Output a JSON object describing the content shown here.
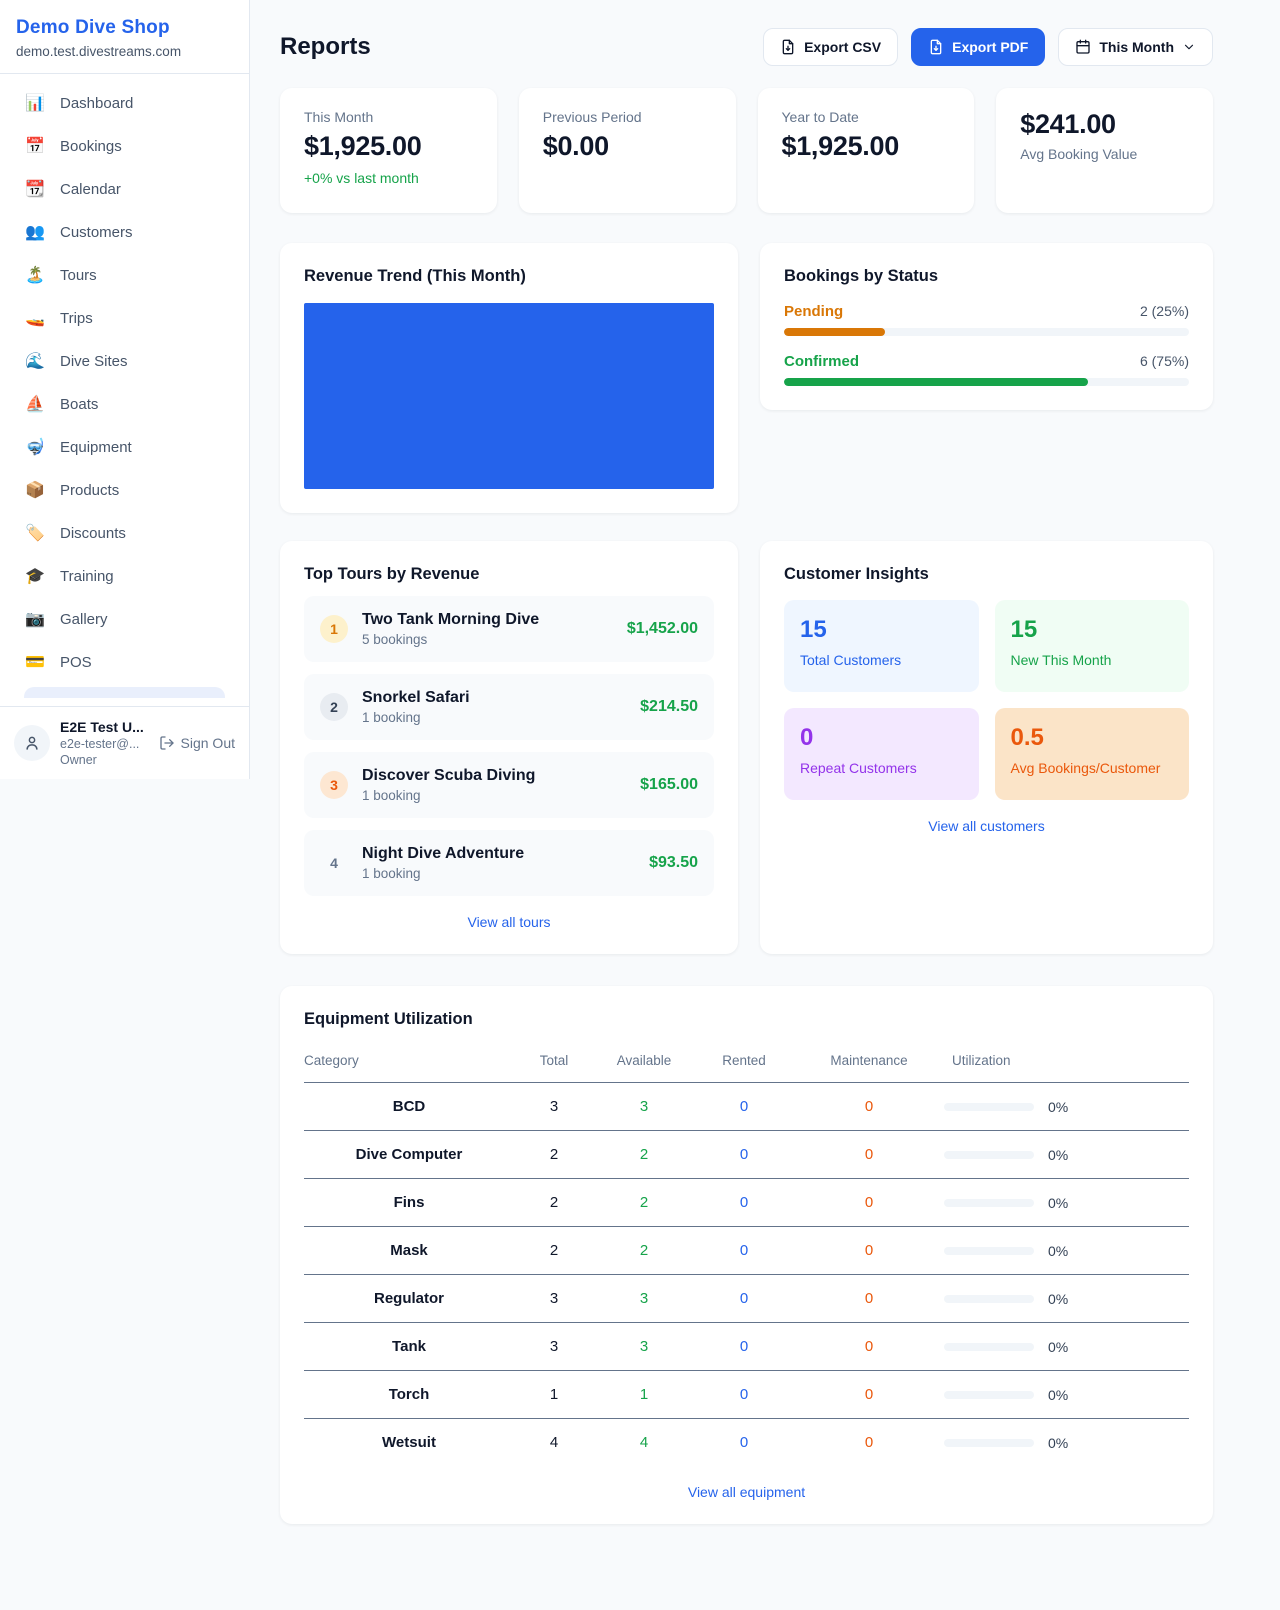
{
  "brand": {
    "name": "Demo Dive Shop",
    "domain": "demo.test.divestreams.com"
  },
  "sidebar": {
    "items": [
      {
        "icon": "📊",
        "label": "Dashboard"
      },
      {
        "icon": "📅",
        "label": "Bookings"
      },
      {
        "icon": "📆",
        "label": "Calendar"
      },
      {
        "icon": "👥",
        "label": "Customers"
      },
      {
        "icon": "🏝️",
        "label": "Tours"
      },
      {
        "icon": "🚤",
        "label": "Trips"
      },
      {
        "icon": "🌊",
        "label": "Dive Sites"
      },
      {
        "icon": "⛵",
        "label": "Boats"
      },
      {
        "icon": "🤿",
        "label": "Equipment"
      },
      {
        "icon": "📦",
        "label": "Products"
      },
      {
        "icon": "🏷️",
        "label": "Discounts"
      },
      {
        "icon": "🎓",
        "label": "Training"
      },
      {
        "icon": "📷",
        "label": "Gallery"
      },
      {
        "icon": "💳",
        "label": "POS"
      }
    ]
  },
  "user": {
    "name": "E2E Test U...",
    "email": "e2e-tester@...",
    "role": "Owner",
    "sign_out": "Sign Out"
  },
  "header": {
    "title": "Reports",
    "export_csv": "Export CSV",
    "export_pdf": "Export PDF",
    "period": "This Month"
  },
  "stats": [
    {
      "label": "This Month",
      "value": "$1,925.00",
      "delta": "+0% vs last month"
    },
    {
      "label": "Previous Period",
      "value": "$0.00"
    },
    {
      "label": "Year to Date",
      "value": "$1,925.00"
    },
    {
      "value": "$241.00",
      "label": "Avg Booking Value"
    }
  ],
  "revenue_trend": {
    "title": "Revenue Trend (This Month)"
  },
  "bookings_by_status": {
    "title": "Bookings by Status",
    "rows": [
      {
        "label": "Pending",
        "value": "2 (25%)",
        "percent": 25
      },
      {
        "label": "Confirmed",
        "value": "6 (75%)",
        "percent": 75
      }
    ]
  },
  "top_tours": {
    "title": "Top Tours by Revenue",
    "rows": [
      {
        "rank": "1",
        "name": "Two Tank Morning Dive",
        "bookings": "5 bookings",
        "revenue": "$1,452.00"
      },
      {
        "rank": "2",
        "name": "Snorkel Safari",
        "bookings": "1 booking",
        "revenue": "$214.50"
      },
      {
        "rank": "3",
        "name": "Discover Scuba Diving",
        "bookings": "1 booking",
        "revenue": "$165.00"
      },
      {
        "rank": "4",
        "name": "Night Dive Adventure",
        "bookings": "1 booking",
        "revenue": "$93.50"
      }
    ],
    "view_all": "View all tours"
  },
  "customer_insights": {
    "title": "Customer Insights",
    "tiles": [
      {
        "value": "15",
        "label": "Total Customers"
      },
      {
        "value": "15",
        "label": "New This Month"
      },
      {
        "value": "0",
        "label": "Repeat Customers"
      },
      {
        "value": "0.5",
        "label": "Avg Bookings/Customer"
      }
    ],
    "view_all": "View all customers"
  },
  "equipment": {
    "title": "Equipment Utilization",
    "columns": [
      "Category",
      "Total",
      "Available",
      "Rented",
      "Maintenance",
      "Utilization"
    ],
    "rows": [
      {
        "category": "BCD",
        "total": "3",
        "available": "3",
        "rented": "0",
        "maintenance": "0",
        "utilization": "0%",
        "percent": 0
      },
      {
        "category": "Dive Computer",
        "total": "2",
        "available": "2",
        "rented": "0",
        "maintenance": "0",
        "utilization": "0%",
        "percent": 0
      },
      {
        "category": "Fins",
        "total": "2",
        "available": "2",
        "rented": "0",
        "maintenance": "0",
        "utilization": "0%",
        "percent": 0
      },
      {
        "category": "Mask",
        "total": "2",
        "available": "2",
        "rented": "0",
        "maintenance": "0",
        "utilization": "0%",
        "percent": 0
      },
      {
        "category": "Regulator",
        "total": "3",
        "available": "3",
        "rented": "0",
        "maintenance": "0",
        "utilization": "0%",
        "percent": 0
      },
      {
        "category": "Tank",
        "total": "3",
        "available": "3",
        "rented": "0",
        "maintenance": "0",
        "utilization": "0%",
        "percent": 0
      },
      {
        "category": "Torch",
        "total": "1",
        "available": "1",
        "rented": "0",
        "maintenance": "0",
        "utilization": "0%",
        "percent": 0
      },
      {
        "category": "Wetsuit",
        "total": "4",
        "available": "4",
        "rented": "0",
        "maintenance": "0",
        "utilization": "0%",
        "percent": 0
      }
    ],
    "view_all": "View all equipment"
  },
  "colors": {
    "brand_blue": "#2563eb",
    "chart_fill": "#2563eb",
    "pending_orange": "#d97706",
    "confirmed_green": "#16a34a",
    "revenue_green": "#16a34a",
    "repeat_purple": "#9333ea",
    "avg_orange": "#ea580c",
    "page_bg": "#f8fafc"
  }
}
